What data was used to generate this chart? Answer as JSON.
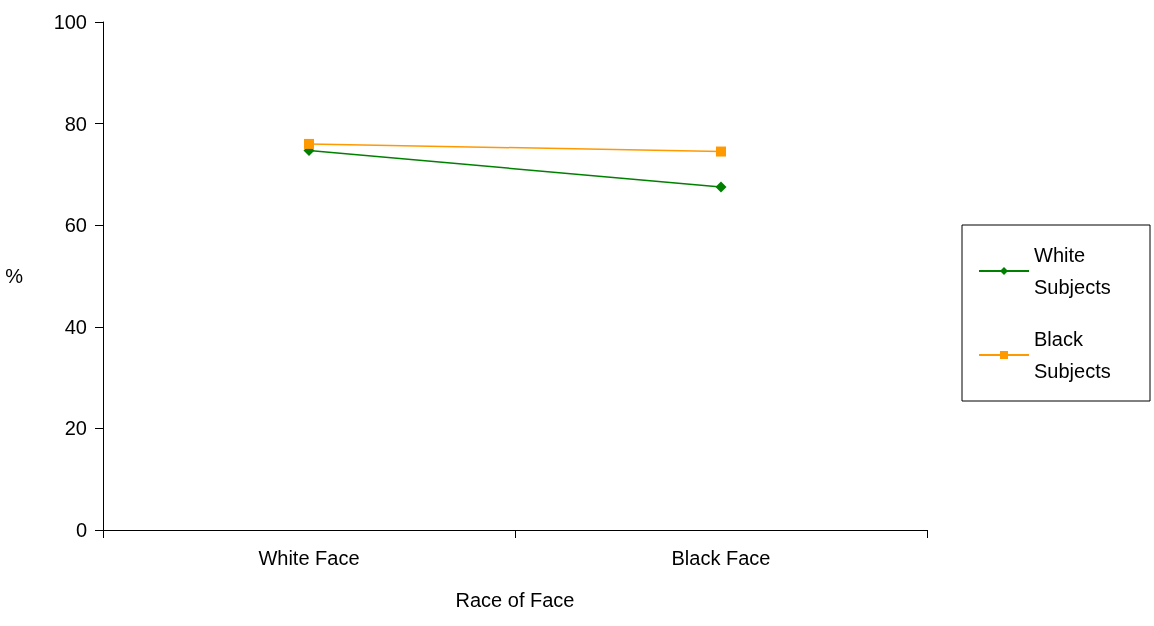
{
  "chart_data": {
    "type": "line",
    "xlabel": "Race of Face",
    "ylabel": "%",
    "categories": [
      "White Face",
      "Black Face"
    ],
    "series": [
      {
        "name": "White Subjects",
        "color": "#008000",
        "marker": "diamond",
        "values": [
          74.7,
          67.5
        ]
      },
      {
        "name": "Black Subjects",
        "color": "#ff9900",
        "marker": "square",
        "values": [
          76.0,
          74.5
        ]
      }
    ],
    "ylim": [
      0,
      100
    ],
    "yticks": [
      0,
      20,
      40,
      60,
      80,
      100
    ],
    "grid": false,
    "legend": "right",
    "line_style": "solid"
  }
}
